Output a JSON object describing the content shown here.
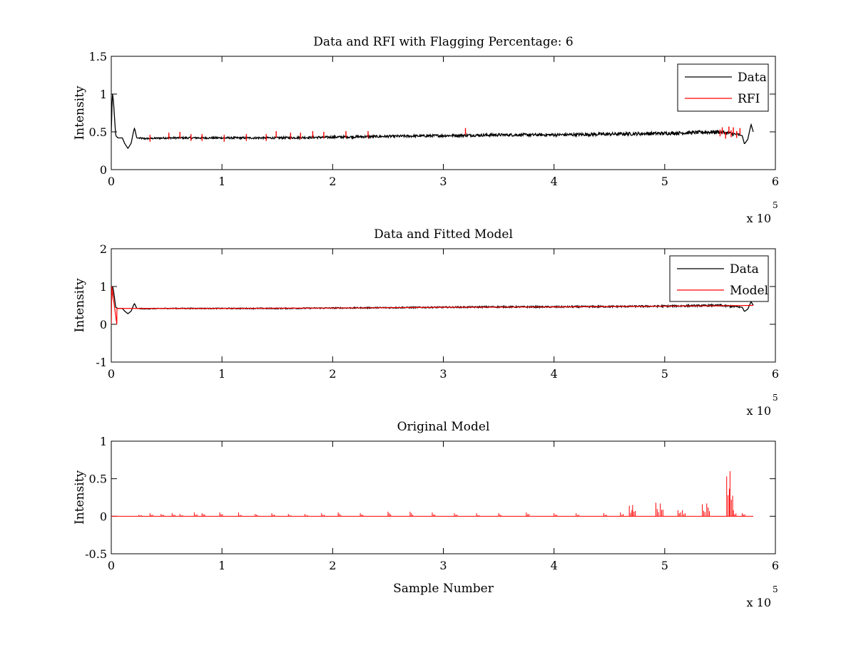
{
  "chart_data": [
    {
      "type": "line",
      "title": "Data and RFI with Flagging Percentage: 6",
      "xlabel": "",
      "ylabel": "Intensity",
      "x_exponent_label": "x 10",
      "x_exponent_power": "5",
      "xlim": [
        0,
        6
      ],
      "ylim": [
        0,
        1.5
      ],
      "xticks": [
        0,
        1,
        2,
        3,
        4,
        5,
        6
      ],
      "xtick_labels": [
        "0",
        "1",
        "2",
        "3",
        "4",
        "5",
        "6"
      ],
      "yticks": [
        0,
        0.5,
        1,
        1.5
      ],
      "ytick_labels": [
        "0",
        "0.5",
        "1",
        "1.5"
      ],
      "grid": false,
      "legend_position": "top-right",
      "series": [
        {
          "name": "Data",
          "color": "#000000",
          "x": [
            0,
            0.01,
            0.02,
            0.04,
            0.06,
            0.1,
            0.12,
            0.15,
            0.18,
            0.2,
            0.21,
            0.23,
            0.3,
            0.5,
            1.0,
            1.5,
            2.0,
            2.5,
            3.0,
            3.5,
            4.0,
            4.5,
            5.0,
            5.5,
            5.7,
            5.72,
            5.75,
            5.78,
            5.8
          ],
          "y": [
            0.5,
            1.02,
            0.9,
            0.45,
            0.42,
            0.42,
            0.35,
            0.28,
            0.35,
            0.5,
            0.55,
            0.42,
            0.41,
            0.42,
            0.42,
            0.42,
            0.43,
            0.44,
            0.45,
            0.46,
            0.46,
            0.47,
            0.48,
            0.5,
            0.45,
            0.34,
            0.4,
            0.6,
            0.5
          ]
        },
        {
          "name": "RFI",
          "color": "#ff0000",
          "x": [
            0.35,
            0.52,
            0.62,
            0.72,
            0.82,
            1.02,
            1.22,
            1.4,
            1.49,
            1.62,
            1.71,
            1.82,
            1.92,
            2.12,
            2.32,
            3.2,
            5.5,
            5.52,
            5.55,
            5.58,
            5.6,
            5.62,
            5.65,
            5.68
          ],
          "y": [
            0.46,
            0.49,
            0.5,
            0.47,
            0.47,
            0.46,
            0.47,
            0.47,
            0.51,
            0.49,
            0.49,
            0.51,
            0.5,
            0.51,
            0.51,
            0.55,
            0.53,
            0.56,
            0.5,
            0.57,
            0.52,
            0.56,
            0.51,
            0.55
          ]
        }
      ]
    },
    {
      "type": "line",
      "title": "Data and Fitted Model",
      "xlabel": "",
      "ylabel": "Intensity",
      "x_exponent_label": "x 10",
      "x_exponent_power": "5",
      "xlim": [
        0,
        6
      ],
      "ylim": [
        -1,
        2
      ],
      "xticks": [
        0,
        1,
        2,
        3,
        4,
        5,
        6
      ],
      "xtick_labels": [
        "0",
        "1",
        "2",
        "3",
        "4",
        "5",
        "6"
      ],
      "yticks": [
        -1,
        0,
        1,
        2
      ],
      "ytick_labels": [
        "-1",
        "0",
        "1",
        "2"
      ],
      "grid": false,
      "legend_position": "top-right",
      "series": [
        {
          "name": "Data",
          "color": "#000000",
          "x": [
            0,
            0.01,
            0.02,
            0.04,
            0.06,
            0.1,
            0.12,
            0.15,
            0.18,
            0.2,
            0.21,
            0.23,
            0.3,
            0.5,
            1.0,
            1.5,
            2.0,
            2.5,
            3.0,
            3.5,
            4.0,
            4.5,
            5.0,
            5.5,
            5.7,
            5.72,
            5.75,
            5.78,
            5.8
          ],
          "y": [
            0.5,
            1.02,
            0.9,
            0.45,
            0.42,
            0.42,
            0.35,
            0.28,
            0.35,
            0.5,
            0.55,
            0.42,
            0.41,
            0.42,
            0.42,
            0.42,
            0.43,
            0.44,
            0.45,
            0.46,
            0.46,
            0.47,
            0.48,
            0.5,
            0.45,
            0.34,
            0.4,
            0.6,
            0.5
          ]
        },
        {
          "name": "Model",
          "color": "#ff0000",
          "x": [
            0.0,
            0.005,
            0.05,
            0.051,
            0.5,
            1.0,
            2.0,
            3.0,
            4.0,
            5.0,
            5.5,
            5.8
          ],
          "y": [
            0.0,
            1.0,
            0.0,
            0.42,
            0.42,
            0.42,
            0.43,
            0.45,
            0.46,
            0.48,
            0.49,
            0.5
          ]
        }
      ]
    },
    {
      "type": "line",
      "title": "Original Model",
      "xlabel": "Sample Number",
      "ylabel": "Intensity",
      "x_exponent_label": "x 10",
      "x_exponent_power": "5",
      "xlim": [
        0,
        6
      ],
      "ylim": [
        -0.5,
        1
      ],
      "xticks": [
        0,
        1,
        2,
        3,
        4,
        5,
        6
      ],
      "xtick_labels": [
        "0",
        "1",
        "2",
        "3",
        "4",
        "5",
        "6"
      ],
      "yticks": [
        -0.5,
        0,
        0.5,
        1
      ],
      "ytick_labels": [
        "-0.5",
        "0",
        "0.5",
        "1"
      ],
      "grid": false,
      "legend_position": "none",
      "series": [
        {
          "color": "#ff0000",
          "baseline": 0,
          "x_range": [
            0,
            5.8
          ],
          "spikes": [
            [
              0.25,
              0.02
            ],
            [
              0.35,
              0.04
            ],
            [
              0.45,
              0.03
            ],
            [
              0.55,
              0.04
            ],
            [
              0.62,
              0.03
            ],
            [
              0.75,
              0.05
            ],
            [
              0.82,
              0.04
            ],
            [
              0.98,
              0.05
            ],
            [
              1.15,
              0.05
            ],
            [
              1.3,
              0.03
            ],
            [
              1.45,
              0.04
            ],
            [
              1.6,
              0.03
            ],
            [
              1.75,
              0.03
            ],
            [
              1.9,
              0.04
            ],
            [
              2.05,
              0.05
            ],
            [
              2.25,
              0.04
            ],
            [
              2.5,
              0.06
            ],
            [
              2.7,
              0.06
            ],
            [
              2.9,
              0.05
            ],
            [
              3.1,
              0.04
            ],
            [
              3.3,
              0.04
            ],
            [
              3.5,
              0.04
            ],
            [
              3.75,
              0.05
            ],
            [
              4.0,
              0.04
            ],
            [
              4.2,
              0.04
            ],
            [
              4.45,
              0.04
            ],
            [
              4.6,
              0.05
            ],
            [
              4.68,
              0.14
            ],
            [
              4.71,
              0.15
            ],
            [
              4.92,
              0.18
            ],
            [
              4.96,
              0.17
            ],
            [
              5.12,
              0.08
            ],
            [
              5.16,
              0.08
            ],
            [
              5.34,
              0.16
            ],
            [
              5.38,
              0.17
            ],
            [
              5.56,
              0.53
            ],
            [
              5.59,
              0.6
            ],
            [
              5.62,
              0.08
            ],
            [
              5.7,
              0.04
            ]
          ]
        }
      ]
    }
  ]
}
